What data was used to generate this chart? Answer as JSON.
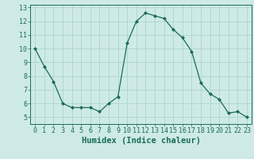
{
  "x": [
    0,
    1,
    2,
    3,
    4,
    5,
    6,
    7,
    8,
    9,
    10,
    11,
    12,
    13,
    14,
    15,
    16,
    17,
    18,
    19,
    20,
    21,
    22,
    23
  ],
  "y": [
    10.0,
    8.7,
    7.6,
    6.0,
    5.7,
    5.7,
    5.7,
    5.4,
    6.0,
    6.5,
    10.4,
    12.0,
    12.6,
    12.4,
    12.2,
    11.4,
    10.8,
    9.8,
    7.5,
    6.7,
    6.3,
    5.3,
    5.4,
    5.0
  ],
  "line_color": "#1a6b5a",
  "marker": "D",
  "marker_size": 2.0,
  "xlabel": "Humidex (Indice chaleur)",
  "xlim": [
    -0.5,
    23.5
  ],
  "ylim": [
    4.5,
    13.2
  ],
  "yticks": [
    5,
    6,
    7,
    8,
    9,
    10,
    11,
    12,
    13
  ],
  "xticks": [
    0,
    1,
    2,
    3,
    4,
    5,
    6,
    7,
    8,
    9,
    10,
    11,
    12,
    13,
    14,
    15,
    16,
    17,
    18,
    19,
    20,
    21,
    22,
    23
  ],
  "bg_color": "#ceeae6",
  "grid_color": "#b0d8d4",
  "tick_label_fontsize": 6.0,
  "xlabel_fontsize": 7.5,
  "xlabel_fontweight": "bold"
}
